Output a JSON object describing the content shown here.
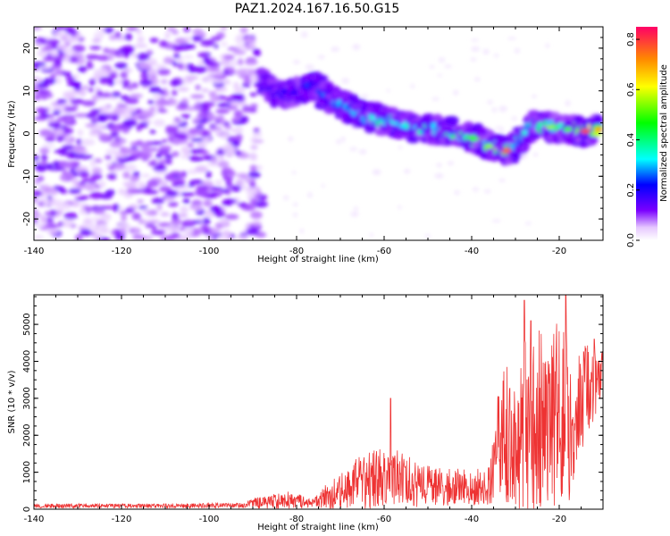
{
  "figure_title": "PAZ1.2024.167.16.50.G15",
  "chart_data": [
    {
      "type": "heatmap",
      "title": "",
      "xlabel": "Height of straight line (km)",
      "ylabel": "Frequency (Hz)",
      "xlim": [
        -140,
        -10
      ],
      "ylim": [
        -25,
        25
      ],
      "xticks": [
        -140,
        -120,
        -100,
        -80,
        -60,
        -40,
        -20
      ],
      "yticks": [
        -20,
        -10,
        0,
        10,
        20
      ],
      "colorbar": {
        "label": "Normalized spectral amplitude",
        "range": [
          0,
          0.85
        ],
        "ticks": [
          "0.0",
          "0.2",
          "0.4",
          "0.6",
          "0.8"
        ],
        "tick_values": [
          0.0,
          0.2,
          0.4,
          0.6,
          0.8
        ],
        "colormap": [
          "#ffffff",
          "#e6c8ff",
          "#7a00ff",
          "#0000ff",
          "#00ffff",
          "#00ff00",
          "#ffff00",
          "#ff8800",
          "#ff0066"
        ]
      },
      "noise_region": {
        "x_range": [
          -140,
          -88
        ],
        "freq_range": [
          -25,
          25
        ],
        "amplitude_range": [
          0.03,
          0.14
        ]
      },
      "signal_track": [
        {
          "x": -88,
          "freq": 12,
          "amp": 0.18
        },
        {
          "x": -84,
          "freq": 9,
          "amp": 0.22
        },
        {
          "x": -80,
          "freq": 10,
          "amp": 0.24
        },
        {
          "x": -76,
          "freq": 11,
          "amp": 0.26
        },
        {
          "x": -72,
          "freq": 8,
          "amp": 0.3
        },
        {
          "x": -68,
          "freq": 6,
          "amp": 0.32
        },
        {
          "x": -64,
          "freq": 4,
          "amp": 0.36
        },
        {
          "x": -60,
          "freq": 3,
          "amp": 0.4
        },
        {
          "x": -56,
          "freq": 2,
          "amp": 0.36
        },
        {
          "x": -52,
          "freq": 1,
          "amp": 0.38
        },
        {
          "x": -48,
          "freq": 1,
          "amp": 0.42
        },
        {
          "x": -44,
          "freq": 0,
          "amp": 0.46
        },
        {
          "x": -40,
          "freq": -1,
          "amp": 0.5
        },
        {
          "x": -36,
          "freq": -3,
          "amp": 0.55
        },
        {
          "x": -32,
          "freq": -4,
          "amp": 0.75
        },
        {
          "x": -30,
          "freq": -3,
          "amp": 0.4
        },
        {
          "x": -26,
          "freq": 2,
          "amp": 0.45
        },
        {
          "x": -22,
          "freq": 1.5,
          "amp": 0.55
        },
        {
          "x": -18,
          "freq": 1,
          "amp": 0.5
        },
        {
          "x": -14,
          "freq": 0.5,
          "amp": 0.78
        },
        {
          "x": -11,
          "freq": 1,
          "amp": 0.7
        }
      ]
    },
    {
      "type": "line",
      "title": "",
      "xlabel": "Height of straight line (km)",
      "ylabel": "SNR (10 * v/v)",
      "xlim": [
        -140,
        -10
      ],
      "ylim": [
        0,
        5800
      ],
      "xticks": [
        -140,
        -120,
        -100,
        -80,
        -60,
        -40,
        -20
      ],
      "yticks": [
        0,
        1000,
        2000,
        3000,
        4000,
        5000
      ],
      "line_color": "#ee3333",
      "envelope": [
        {
          "x": -140,
          "base": 90,
          "amp": 60
        },
        {
          "x": -110,
          "base": 90,
          "amp": 60
        },
        {
          "x": -92,
          "base": 110,
          "amp": 70
        },
        {
          "x": -88,
          "base": 200,
          "amp": 200
        },
        {
          "x": -82,
          "base": 230,
          "amp": 250
        },
        {
          "x": -76,
          "base": 170,
          "amp": 120
        },
        {
          "x": -72,
          "base": 400,
          "amp": 450
        },
        {
          "x": -66,
          "base": 700,
          "amp": 700
        },
        {
          "x": -62,
          "base": 800,
          "amp": 900
        },
        {
          "x": -58,
          "base": 900,
          "amp": 800
        },
        {
          "x": -52,
          "base": 650,
          "amp": 600
        },
        {
          "x": -46,
          "base": 600,
          "amp": 500
        },
        {
          "x": -40,
          "base": 600,
          "amp": 500
        },
        {
          "x": -36,
          "base": 650,
          "amp": 550
        },
        {
          "x": -34,
          "base": 1800,
          "amp": 1600
        },
        {
          "x": -30,
          "base": 2200,
          "amp": 2200
        },
        {
          "x": -26,
          "base": 2400,
          "amp": 2600
        },
        {
          "x": -22,
          "base": 2300,
          "amp": 2400
        },
        {
          "x": -19,
          "base": 2800,
          "amp": 2800
        },
        {
          "x": -17,
          "base": 1800,
          "amp": 1600
        },
        {
          "x": -15,
          "base": 3000,
          "amp": 1500
        },
        {
          "x": -12,
          "base": 3300,
          "amp": 1100
        },
        {
          "x": -10,
          "base": 3700,
          "amp": 700
        }
      ],
      "peaks": [
        {
          "x": -58.5,
          "y": 3000
        },
        {
          "x": -28,
          "y": 5650
        },
        {
          "x": -18.5,
          "y": 5800
        },
        {
          "x": -26.5,
          "y": 5100
        },
        {
          "x": -12,
          "y": 4600
        }
      ]
    }
  ]
}
